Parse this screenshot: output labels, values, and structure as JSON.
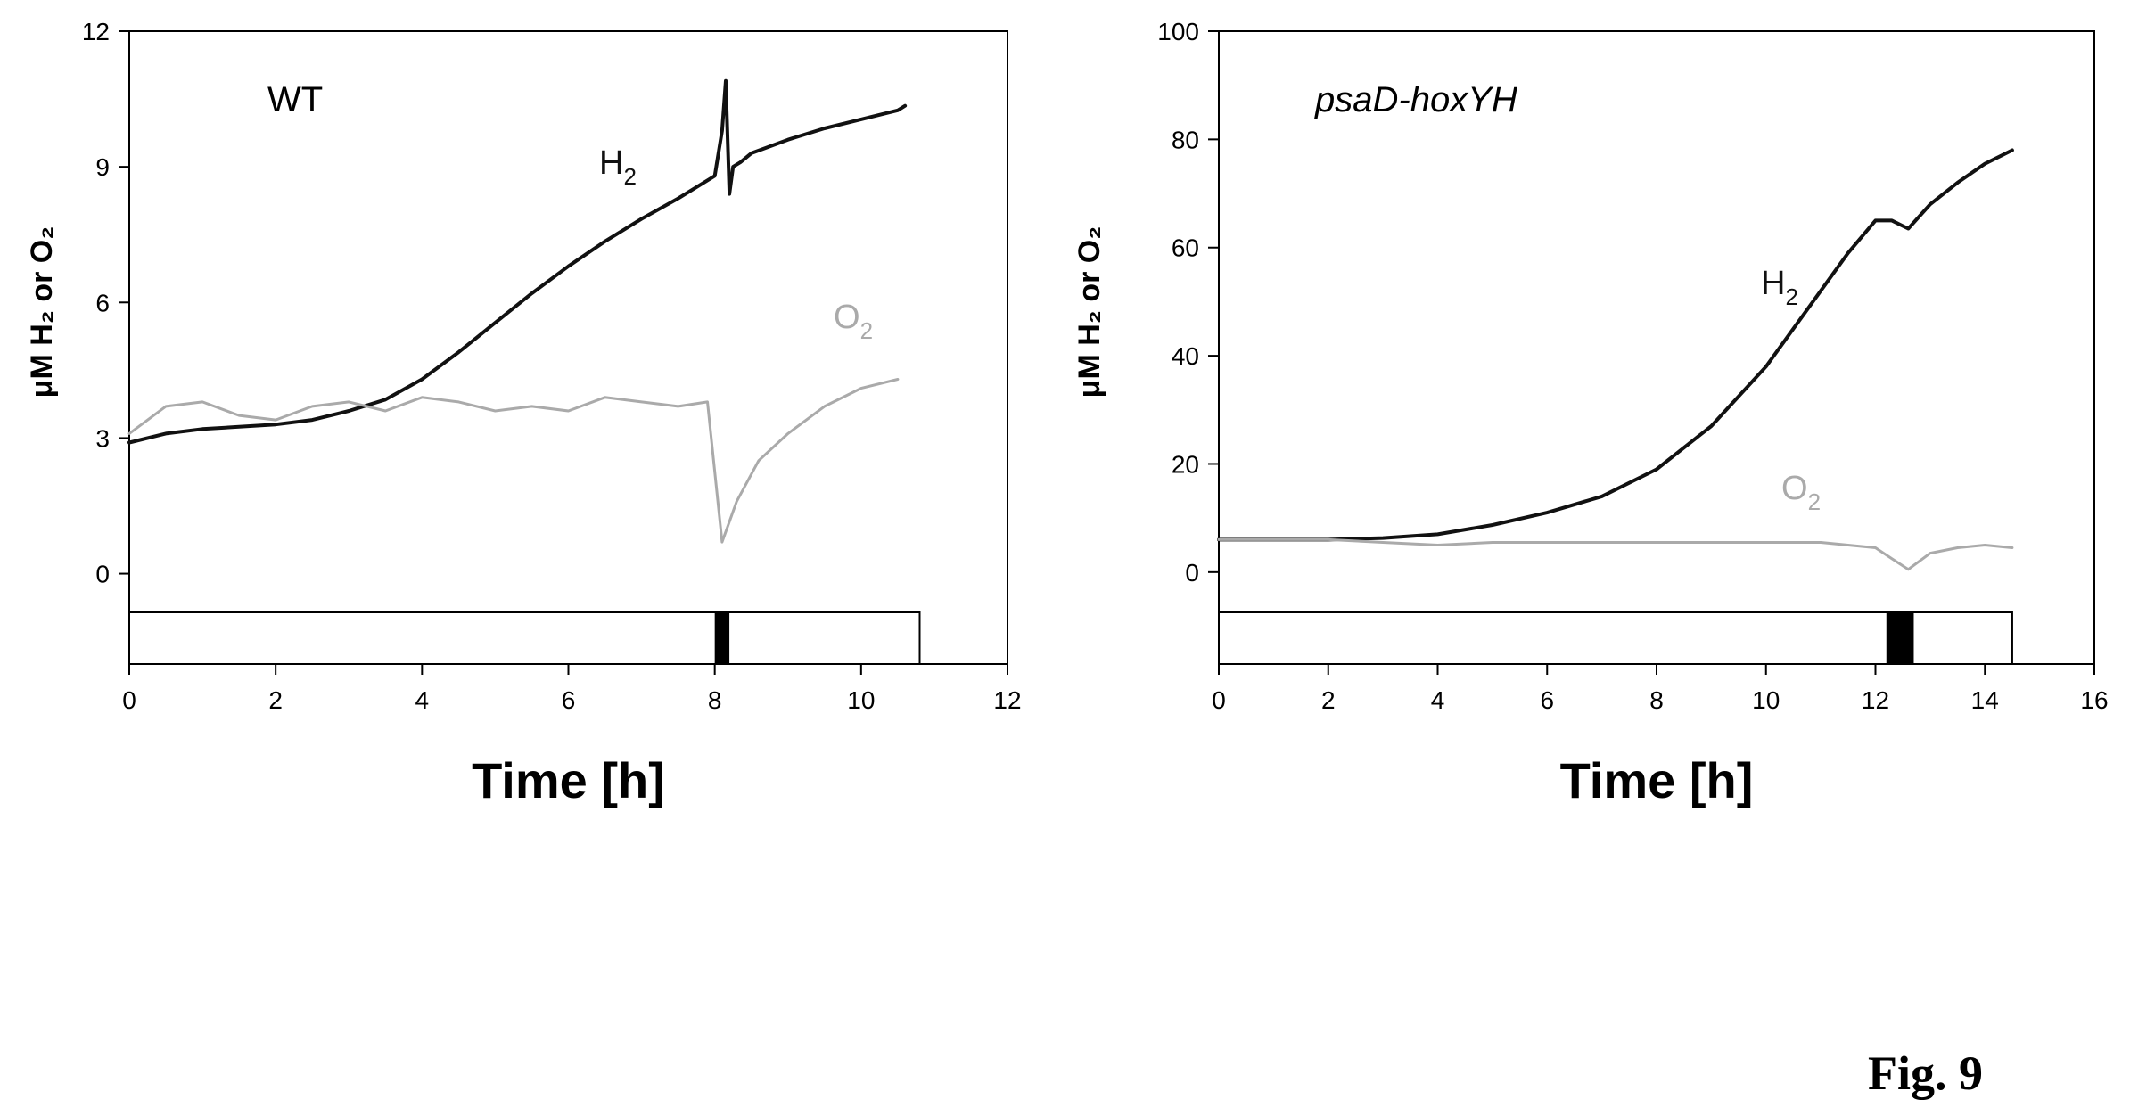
{
  "figure_label": "Fig. 9",
  "chart_data": [
    {
      "type": "line",
      "panel_label": "WT",
      "xlabel": "Time [h]",
      "ylabel": "μM H₂ or O₂",
      "xlim": [
        0,
        12
      ],
      "ylim": [
        -2,
        12
      ],
      "xticks": [
        0,
        2,
        4,
        6,
        8,
        10,
        12
      ],
      "yticks": [
        0,
        3,
        6,
        9,
        12
      ],
      "light_bar": {
        "start": 0,
        "end": 10.8,
        "dark_start": 8.0,
        "dark_end": 8.2
      },
      "series": [
        {
          "name": "H2",
          "label_main": "H",
          "label_sub": "2",
          "color": "#111111",
          "x": [
            0,
            0.5,
            1,
            1.5,
            2,
            2.5,
            3,
            3.5,
            4,
            4.5,
            5,
            5.5,
            6,
            6.5,
            7,
            7.5,
            8,
            8.1,
            8.15,
            8.2,
            8.25,
            8.35,
            8.5,
            9,
            9.5,
            10,
            10.5,
            10.6
          ],
          "y": [
            2.9,
            3.1,
            3.2,
            3.25,
            3.3,
            3.4,
            3.6,
            3.85,
            4.3,
            4.9,
            5.55,
            6.2,
            6.8,
            7.35,
            7.85,
            8.3,
            8.8,
            9.8,
            10.9,
            8.4,
            9.0,
            9.1,
            9.3,
            9.6,
            9.85,
            10.05,
            10.25,
            10.35
          ]
        },
        {
          "name": "O2",
          "label_main": "O",
          "label_sub": "2",
          "color": "#aaaaaa",
          "x": [
            0,
            0.5,
            1,
            1.5,
            2,
            2.5,
            3,
            3.5,
            4,
            4.5,
            5,
            5.5,
            6,
            6.5,
            7,
            7.5,
            7.9,
            8.1,
            8.3,
            8.6,
            9,
            9.5,
            10,
            10.5
          ],
          "y": [
            3.1,
            3.7,
            3.8,
            3.5,
            3.4,
            3.7,
            3.8,
            3.6,
            3.9,
            3.8,
            3.6,
            3.7,
            3.6,
            3.9,
            3.8,
            3.7,
            3.8,
            0.7,
            1.6,
            2.5,
            3.1,
            3.7,
            4.1,
            4.3
          ]
        }
      ]
    },
    {
      "type": "line",
      "panel_label": "psaD-hoxYH",
      "xlabel": "Time [h]",
      "ylabel": "μM H₂ or O₂",
      "xlim": [
        0,
        16
      ],
      "ylim": [
        -17,
        100
      ],
      "xticks": [
        0,
        2,
        4,
        6,
        8,
        10,
        12,
        14,
        16
      ],
      "yticks": [
        0,
        20,
        40,
        60,
        80,
        100
      ],
      "light_bar": {
        "start": 0,
        "end": 14.5,
        "dark_start": 12.2,
        "dark_end": 12.7
      },
      "series": [
        {
          "name": "H2",
          "label_main": "H",
          "label_sub": "2",
          "color": "#111111",
          "x": [
            0,
            1,
            2,
            3,
            4,
            5,
            6,
            7,
            8,
            9,
            10,
            10.5,
            11,
            11.5,
            12,
            12.3,
            12.6,
            13,
            13.5,
            14,
            14.5
          ],
          "y": [
            6,
            6,
            6,
            6.3,
            7,
            8.7,
            11,
            14,
            19,
            27,
            38,
            45,
            52,
            59,
            65,
            65,
            63.5,
            68,
            72,
            75.5,
            78
          ]
        },
        {
          "name": "O2",
          "label_main": "O",
          "label_sub": "2",
          "color": "#aaaaaa",
          "x": [
            0,
            1,
            2,
            3,
            4,
            5,
            6,
            7,
            8,
            9,
            10,
            11,
            12,
            12.3,
            12.6,
            13,
            13.5,
            14,
            14.5
          ],
          "y": [
            6,
            6,
            6,
            5.5,
            5,
            5.5,
            5.5,
            5.5,
            5.5,
            5.5,
            5.5,
            5.5,
            4.5,
            2.5,
            0.5,
            3.5,
            4.5,
            5,
            4.5
          ]
        }
      ]
    }
  ]
}
